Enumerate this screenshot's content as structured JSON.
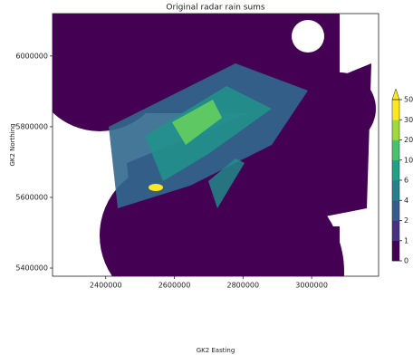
{
  "chart_data": {
    "type": "image",
    "title": "Original radar rain sums",
    "xlabel": "GK2 Easting",
    "ylabel": "GK2 Northing",
    "xlim": [
      2245000,
      3195000
    ],
    "xticks": [
      2400000,
      2600000,
      2800000,
      3000000
    ],
    "ylim": [
      5377000,
      6120000
    ],
    "yticks": [
      5400000,
      5600000,
      5800000,
      6000000
    ],
    "colorbar": {
      "ticks": [
        0,
        1,
        2,
        4,
        6,
        10,
        20,
        30,
        50
      ],
      "colors": [
        "#440154",
        "#46327e",
        "#365c8d",
        "#277f8e",
        "#1fa187",
        "#4ac16d",
        "#a0da39",
        "#fde725"
      ],
      "extend_color": "#fde725"
    }
  }
}
